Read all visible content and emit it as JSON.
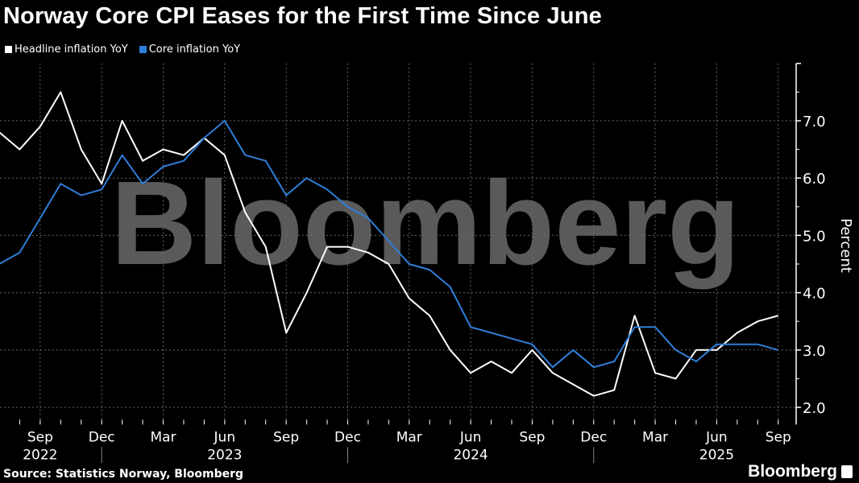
{
  "title": "Norway Core CPI Eases for the First Time Since June",
  "source": "Source: Statistics Norway, Bloomberg",
  "brand": "Bloomberg",
  "watermark": "Bloomberg",
  "colors": {
    "headline": "#ffffff",
    "core": "#2f7ed8",
    "grid": "#555555",
    "watermark": "#5a5a5a"
  },
  "chart_data": {
    "type": "line",
    "title": "Norway Core CPI Eases for the First Time Since June",
    "ylabel": "Percent",
    "ylim": [
      1.7,
      8.0
    ],
    "yticks": [
      "2.0",
      "3.0",
      "4.0",
      "5.0",
      "6.0",
      "7.0"
    ],
    "y_axis_side": "right",
    "grid": true,
    "legend_placement": "top-left",
    "x": [
      "2022-07",
      "2022-08",
      "2022-09",
      "2022-10",
      "2022-11",
      "2022-12",
      "2023-01",
      "2023-02",
      "2023-03",
      "2023-04",
      "2023-05",
      "2023-06",
      "2023-07",
      "2023-08",
      "2023-09",
      "2023-10",
      "2023-11",
      "2023-12",
      "2024-01",
      "2024-02",
      "2024-03",
      "2024-04",
      "2024-05",
      "2024-06",
      "2024-07",
      "2024-08",
      "2024-09",
      "2024-10",
      "2024-11",
      "2024-12",
      "2025-01",
      "2025-02",
      "2025-03",
      "2025-04",
      "2025-05",
      "2025-06",
      "2025-07",
      "2025-08",
      "2025-09"
    ],
    "xticks": [
      {
        "date": "2022-09",
        "label": "Sep",
        "year": "2022"
      },
      {
        "date": "2022-12",
        "label": "Dec"
      },
      {
        "date": "2023-03",
        "label": "Mar"
      },
      {
        "date": "2023-06",
        "label": "Jun",
        "year": "2023"
      },
      {
        "date": "2023-09",
        "label": "Sep"
      },
      {
        "date": "2023-12",
        "label": "Dec"
      },
      {
        "date": "2024-03",
        "label": "Mar"
      },
      {
        "date": "2024-06",
        "label": "Jun",
        "year": "2024"
      },
      {
        "date": "2024-09",
        "label": "Sep"
      },
      {
        "date": "2024-12",
        "label": "Dec"
      },
      {
        "date": "2025-03",
        "label": "Mar"
      },
      {
        "date": "2025-06",
        "label": "Jun",
        "year": "2025"
      },
      {
        "date": "2025-09",
        "label": "Sep"
      }
    ],
    "series": [
      {
        "name": "Headline inflation YoY",
        "color": "#ffffff",
        "values": [
          6.8,
          6.5,
          6.9,
          7.5,
          6.5,
          5.9,
          7.0,
          6.3,
          6.5,
          6.4,
          6.7,
          6.4,
          5.4,
          4.8,
          3.3,
          4.0,
          4.8,
          4.8,
          4.7,
          4.5,
          3.9,
          3.6,
          3.0,
          2.6,
          2.8,
          2.6,
          3.0,
          2.6,
          2.4,
          2.2,
          2.3,
          3.6,
          2.6,
          2.5,
          3.0,
          3.0,
          3.3,
          3.5,
          3.6
        ]
      },
      {
        "name": "Core inflation YoY",
        "color": "#2f7ed8",
        "values": [
          4.5,
          4.7,
          5.3,
          5.9,
          5.7,
          5.8,
          6.4,
          5.9,
          6.2,
          6.3,
          6.7,
          7.0,
          6.4,
          6.3,
          5.7,
          6.0,
          5.8,
          5.5,
          5.3,
          4.9,
          4.5,
          4.4,
          4.1,
          3.4,
          3.3,
          3.2,
          3.1,
          2.7,
          3.0,
          2.7,
          2.8,
          3.4,
          3.4,
          3.0,
          2.8,
          3.1,
          3.1,
          3.1,
          3.0
        ]
      }
    ]
  }
}
